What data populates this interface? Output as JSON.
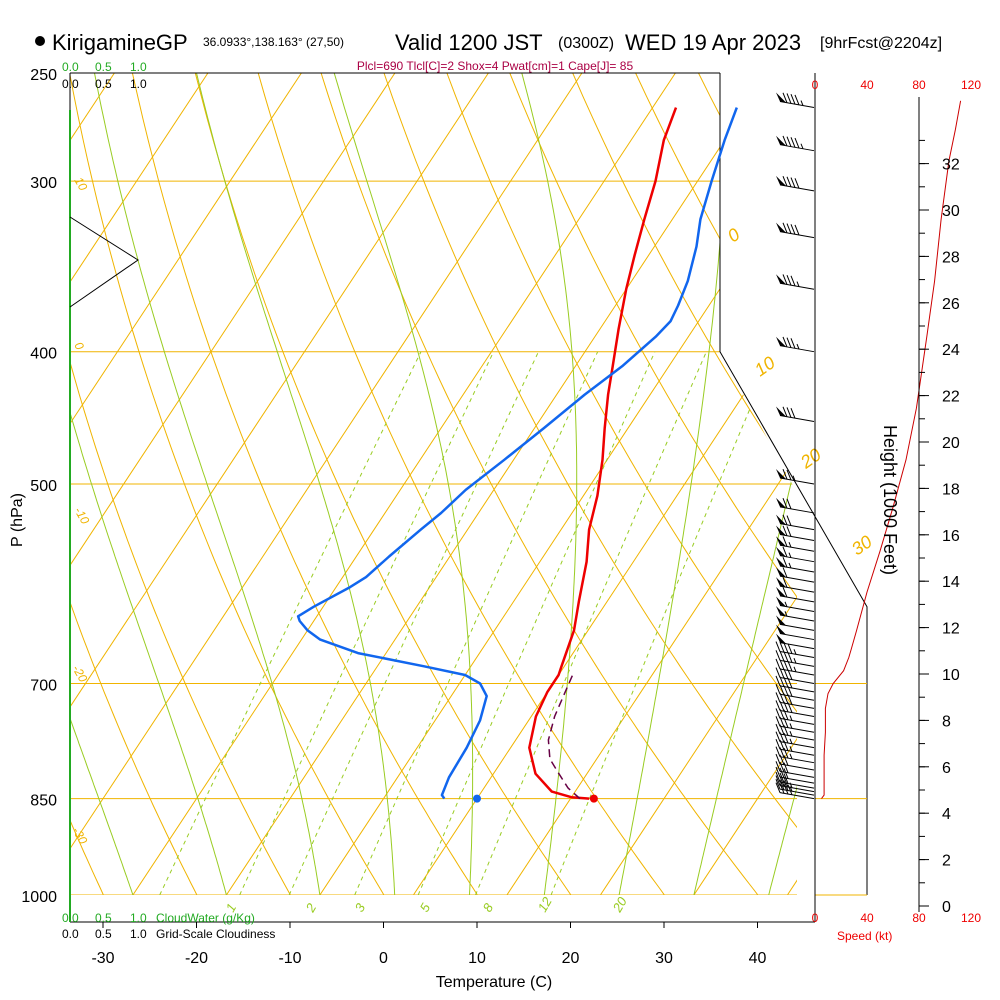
{
  "header": {
    "station": "KirigamineGP",
    "coords": "36.0933°,138.163° (27,50)",
    "valid": "Valid 1200 JST",
    "zulu": "(0300Z)",
    "date": "WED 19 Apr 2023",
    "run": "[9hrFcst@2204z]"
  },
  "indices": "Plcl=690 Tlcl[C]=2 Shox=4 Pwat[cm]=1 Cape[J]= 85",
  "colors": {
    "temp": "#ee0000",
    "dewpoint": "#1166ee",
    "parcel": "#660044",
    "isotherm": "#f0b400",
    "dry_adiabat": "#f0b400",
    "moist_adiabat": "#99cc22",
    "mixing_ratio": "#99cc22",
    "cloudwater": "#22aa22",
    "speed": "#cc0000"
  },
  "labels": {
    "pressure_axis": "P (hPa)",
    "height_axis": "Height (1000 Feet)",
    "temperature_axis": "Temperature (C)",
    "speed_label": "Speed (kt)",
    "cloudwater_label": "CloudWater (g/Kg)",
    "cloudiness_label": "Grid-Scale Cloudiness",
    "cw_ticks": [
      "0.0",
      "0.5",
      "1.0"
    ],
    "cloud_ticks": [
      "0.0",
      "0.5",
      "1.0"
    ],
    "speed_ticks": [
      "0",
      "40",
      "80",
      "120"
    ]
  },
  "chart_data": {
    "type": "line",
    "pressure_ticks": [
      "250",
      "300",
      "400",
      "500",
      "700",
      "850",
      "1000"
    ],
    "temp_ticks": [
      "-30",
      "-20",
      "-10",
      "0",
      "10",
      "20",
      "30",
      "40"
    ],
    "height_ticks": [
      "0",
      "2",
      "4",
      "6",
      "8",
      "10",
      "12",
      "14",
      "16",
      "18",
      "20",
      "22",
      "24",
      "26",
      "28",
      "30",
      "32"
    ],
    "dry_adiabat_labels": [
      "0",
      "10",
      "20",
      "30"
    ],
    "moist_left_labels": [
      "10",
      "0",
      "-10",
      "-20",
      "-30"
    ],
    "mixing_ratio_labels": [
      "1",
      "2",
      "3",
      "5",
      "8",
      "12",
      "20"
    ],
    "temp_label_values": [
      -30,
      -20,
      -10,
      0,
      10,
      20,
      30,
      40
    ],
    "pressure_label_values": [
      250,
      300,
      400,
      500,
      700,
      850,
      1000
    ],
    "height_label_values": [
      0,
      2,
      4,
      6,
      8,
      10,
      12,
      14,
      16,
      18,
      20,
      22,
      24,
      26,
      28,
      30,
      32
    ],
    "series": [
      {
        "name": "temperature",
        "points": [
          [
            22.0,
            850
          ],
          [
            20.0,
            848
          ],
          [
            17.5,
            840
          ],
          [
            14.5,
            815
          ],
          [
            12.0,
            780
          ],
          [
            10.5,
            740
          ],
          [
            10.0,
            710
          ],
          [
            10.0,
            690
          ],
          [
            9.7,
            680
          ],
          [
            8.5,
            640
          ],
          [
            7.0,
            610
          ],
          [
            5.0,
            570
          ],
          [
            3.0,
            540
          ],
          [
            1.5,
            510
          ],
          [
            -0.5,
            480
          ],
          [
            -2.5,
            455
          ],
          [
            -4.5,
            430
          ],
          [
            -6.0,
            410
          ],
          [
            -8.0,
            385
          ],
          [
            -10.0,
            360
          ],
          [
            -11.5,
            340
          ],
          [
            -13.0,
            320
          ],
          [
            -14.5,
            300
          ],
          [
            -16.5,
            280
          ],
          [
            -17.5,
            265
          ]
        ]
      },
      {
        "name": "dewpoint",
        "points": [
          [
            6.5,
            850
          ],
          [
            6.0,
            845
          ],
          [
            5.5,
            820
          ],
          [
            5.3,
            780
          ],
          [
            4.8,
            745
          ],
          [
            3.8,
            715
          ],
          [
            2.2,
            700
          ],
          [
            0.0,
            690
          ],
          [
            -5.0,
            680
          ],
          [
            -13.0,
            665
          ],
          [
            -18.0,
            650
          ],
          [
            -20.0,
            640
          ],
          [
            -21.5,
            630
          ],
          [
            -22.0,
            625
          ],
          [
            -21.0,
            615
          ],
          [
            -18.5,
            595
          ],
          [
            -17.5,
            585
          ],
          [
            -16.5,
            565
          ],
          [
            -15.0,
            540
          ],
          [
            -14.0,
            525
          ],
          [
            -13.0,
            505
          ],
          [
            -11.0,
            480
          ],
          [
            -9.0,
            455
          ],
          [
            -7.0,
            430
          ],
          [
            -5.0,
            410
          ],
          [
            -3.5,
            390
          ],
          [
            -3.0,
            380
          ],
          [
            -3.3,
            370
          ],
          [
            -4.0,
            355
          ],
          [
            -5.5,
            335
          ],
          [
            -7.0,
            320
          ],
          [
            -8.5,
            300
          ],
          [
            -10.0,
            280
          ],
          [
            -11.0,
            265
          ]
        ]
      },
      {
        "name": "parcel",
        "points": [
          [
            21.0,
            850
          ],
          [
            19.0,
            835
          ],
          [
            17.0,
            815
          ],
          [
            15.0,
            795
          ],
          [
            13.5,
            770
          ],
          [
            12.5,
            740
          ],
          [
            12.0,
            715
          ],
          [
            11.5,
            690
          ]
        ]
      }
    ],
    "surface_temp": 22.5,
    "surface_dewpoint": 10,
    "surface_pressure": 850,
    "wind": [
      {
        "p": 850,
        "spd": 40
      },
      {
        "p": 845,
        "spd": 38
      },
      {
        "p": 840,
        "spd": 36
      },
      {
        "p": 835,
        "spd": 34
      },
      {
        "p": 828,
        "spd": 33
      },
      {
        "p": 820,
        "spd": 33
      },
      {
        "p": 810,
        "spd": 34
      },
      {
        "p": 800,
        "spd": 35
      },
      {
        "p": 790,
        "spd": 35
      },
      {
        "p": 780,
        "spd": 36
      },
      {
        "p": 770,
        "spd": 37
      },
      {
        "p": 760,
        "spd": 38
      },
      {
        "p": 750,
        "spd": 39
      },
      {
        "p": 740,
        "spd": 40
      },
      {
        "p": 730,
        "spd": 41
      },
      {
        "p": 720,
        "spd": 42
      },
      {
        "p": 710,
        "spd": 43
      },
      {
        "p": 700,
        "spd": 44
      },
      {
        "p": 690,
        "spd": 45
      },
      {
        "p": 680,
        "spd": 46
      },
      {
        "p": 670,
        "spd": 48
      },
      {
        "p": 660,
        "spd": 50
      },
      {
        "p": 650,
        "spd": 52
      },
      {
        "p": 640,
        "spd": 54
      },
      {
        "p": 630,
        "spd": 56
      },
      {
        "p": 620,
        "spd": 58
      },
      {
        "p": 610,
        "spd": 60
      },
      {
        "p": 600,
        "spd": 62
      },
      {
        "p": 590,
        "spd": 64
      },
      {
        "p": 580,
        "spd": 66
      },
      {
        "p": 570,
        "spd": 68
      },
      {
        "p": 560,
        "spd": 68
      },
      {
        "p": 550,
        "spd": 70
      },
      {
        "p": 540,
        "spd": 72
      },
      {
        "p": 525,
        "spd": 74
      },
      {
        "p": 500,
        "spd": 78
      },
      {
        "p": 450,
        "spd": 82
      },
      {
        "p": 400,
        "spd": 85
      },
      {
        "p": 360,
        "spd": 88
      },
      {
        "p": 330,
        "spd": 90
      },
      {
        "p": 305,
        "spd": 92
      },
      {
        "p": 285,
        "spd": 95
      },
      {
        "p": 265,
        "spd": 98
      }
    ],
    "speed_profile": [
      [
        5,
        850
      ],
      [
        7,
        845
      ],
      [
        7,
        820
      ],
      [
        7,
        790
      ],
      [
        8,
        760
      ],
      [
        8,
        730
      ],
      [
        10,
        712
      ],
      [
        14,
        700
      ],
      [
        22,
        685
      ],
      [
        26,
        670
      ],
      [
        28,
        660
      ],
      [
        32,
        640
      ],
      [
        40,
        600
      ],
      [
        50,
        560
      ],
      [
        60,
        520
      ],
      [
        70,
        480
      ],
      [
        78,
        440
      ],
      [
        86,
        390
      ],
      [
        92,
        355
      ],
      [
        97,
        320
      ],
      [
        103,
        290
      ],
      [
        108,
        275
      ],
      [
        112,
        262
      ]
    ],
    "pressure_range": [
      250,
      1000
    ],
    "temp_range": [
      -33,
      47
    ]
  }
}
